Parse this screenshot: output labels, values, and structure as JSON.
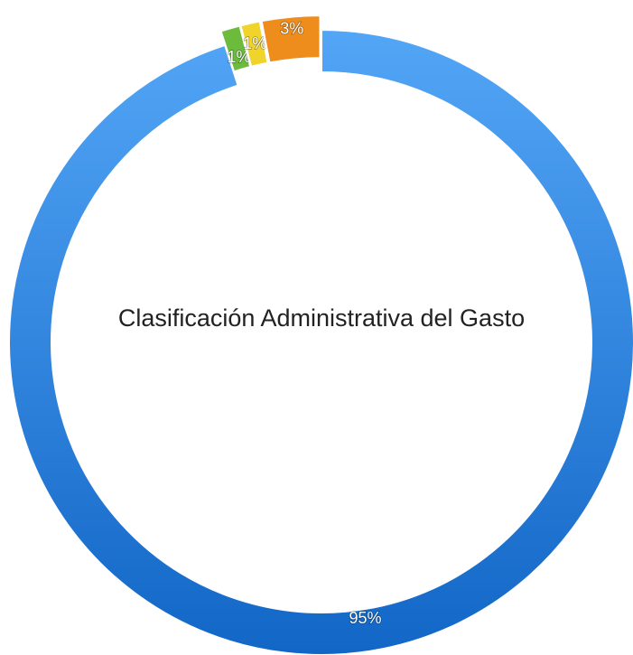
{
  "chart_data": {
    "type": "pie",
    "donut": true,
    "title": "Clasificación Administrativa del Gasto",
    "values": [
      95,
      1,
      1,
      3
    ],
    "value_labels": [
      "95%",
      "1%",
      "1%",
      "3%"
    ],
    "colors": [
      "#3d8ee6",
      "#6cbb3c",
      "#f0d42c",
      "#ee8d1c"
    ]
  }
}
